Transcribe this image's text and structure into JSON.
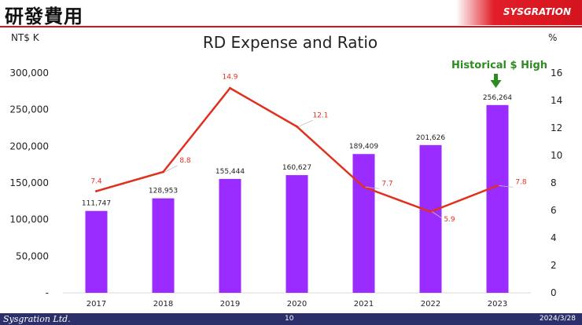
{
  "header": {
    "title": "研發費用",
    "logo_text": "SYSGRATION",
    "brand_color": "#d4141d"
  },
  "footer": {
    "company": "Sysgration Ltd.",
    "page_number": "10",
    "date": "2024/3/28",
    "background_color": "#2b2f6a"
  },
  "annotation": {
    "text": "Historical $ High",
    "color": "#2e8b22",
    "icon": "arrow-down-icon"
  },
  "chart_data": {
    "type": "bar",
    "title": "RD Expense and Ratio",
    "categories": [
      "2017",
      "2018",
      "2019",
      "2020",
      "2021",
      "2022",
      "2023"
    ],
    "y_left": {
      "unit_label": "NT$ K",
      "ylim": [
        0,
        300000
      ],
      "ticks": [
        "-",
        "50,000",
        "100,000",
        "150,000",
        "200,000",
        "250,000",
        "300,000"
      ]
    },
    "y_right": {
      "unit_label": "%",
      "ylim": [
        0,
        16
      ],
      "ticks": [
        "0",
        "2",
        "4",
        "6",
        "8",
        "10",
        "12",
        "14",
        "16"
      ]
    },
    "series": [
      {
        "kind": "bar",
        "axis": "left",
        "color": "#9b2cff",
        "values": [
          111747,
          128953,
          155444,
          160627,
          189409,
          201626,
          256264
        ],
        "labels": [
          "111,747",
          "128,953",
          "155,444",
          "160,627",
          "189,409",
          "201,626",
          "256,264"
        ]
      },
      {
        "kind": "line",
        "axis": "right",
        "color": "#e0301e",
        "values": [
          7.4,
          8.8,
          14.9,
          12.1,
          7.7,
          5.9,
          7.8
        ],
        "labels": [
          "7.4",
          "8.8",
          "14.9",
          "12.1",
          "7.7",
          "5.9",
          "7.8"
        ]
      }
    ],
    "grid": false,
    "legend": "none"
  }
}
